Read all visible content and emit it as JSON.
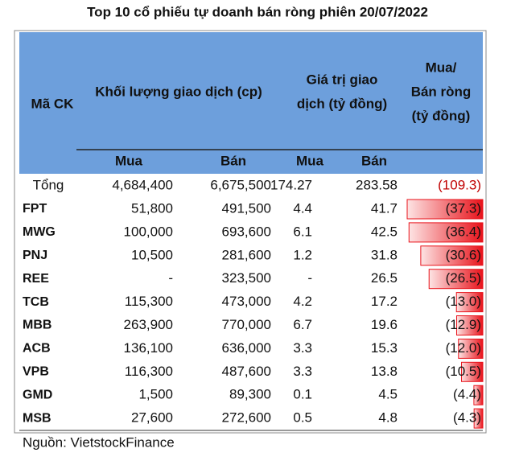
{
  "header": {
    "title": "Top 10 cổ phiếu tự doanh bán ròng phiên 20/07/2022"
  },
  "table": {
    "headers": {
      "code": "Mã CK",
      "volume": "Khối lượng giao dịch (cp)",
      "value": [
        "Giá trị giao",
        "dịch (tỷ đồng)"
      ],
      "net": [
        "Mua/",
        "Bán ròng",
        "(tỷ đồng)"
      ]
    },
    "subheaders": [
      "Mua",
      "Bán",
      "Mua",
      "Bán"
    ],
    "total": {
      "label": "Tổng",
      "cells": [
        "4,684,400",
        "6,675,500",
        "174.27",
        "283.58"
      ],
      "net": -109.3,
      "net_label": "(109.3)"
    },
    "rows": [
      {
        "cells": [
          "FPT",
          "51,800",
          "491,500",
          "4.4",
          "41.7"
        ],
        "net": -37.3,
        "net_label": "(37.3)"
      },
      {
        "cells": [
          "MWG",
          "100,000",
          "693,600",
          "6.1",
          "42.5"
        ],
        "net": -36.4,
        "net_label": "(36.4)"
      },
      {
        "cells": [
          "PNJ",
          "10,500",
          "281,600",
          "1.2",
          "31.8"
        ],
        "net": -30.6,
        "net_label": "(30.6)"
      },
      {
        "cells": [
          "REE",
          "-",
          "323,500",
          "-",
          "26.5"
        ],
        "net": -26.5,
        "net_label": "(26.5)"
      },
      {
        "cells": [
          "TCB",
          "115,300",
          "473,000",
          "4.2",
          "17.2"
        ],
        "net": -13.0,
        "net_label": "(13.0)"
      },
      {
        "cells": [
          "MBB",
          "263,900",
          "770,000",
          "6.7",
          "19.6"
        ],
        "net": -12.9,
        "net_label": "(12.9)"
      },
      {
        "cells": [
          "ACB",
          "136,100",
          "636,000",
          "3.3",
          "15.3"
        ],
        "net": -12.0,
        "net_label": "(12.0)"
      },
      {
        "cells": [
          "VPB",
          "116,300",
          "487,600",
          "3.3",
          "13.8"
        ],
        "net": -10.5,
        "net_label": "(10.5)"
      },
      {
        "cells": [
          "GMD",
          "1,500",
          "89,300",
          "0.1",
          "4.5"
        ],
        "net": -4.4,
        "net_label": "(4.4)"
      },
      {
        "cells": [
          "MSB",
          "27,600",
          "272,600",
          "0.5",
          "4.8"
        ],
        "net": -4.3,
        "net_label": "(4.3)"
      }
    ]
  },
  "footer": {
    "source": "Nguồn: VietstockFinance"
  }
}
